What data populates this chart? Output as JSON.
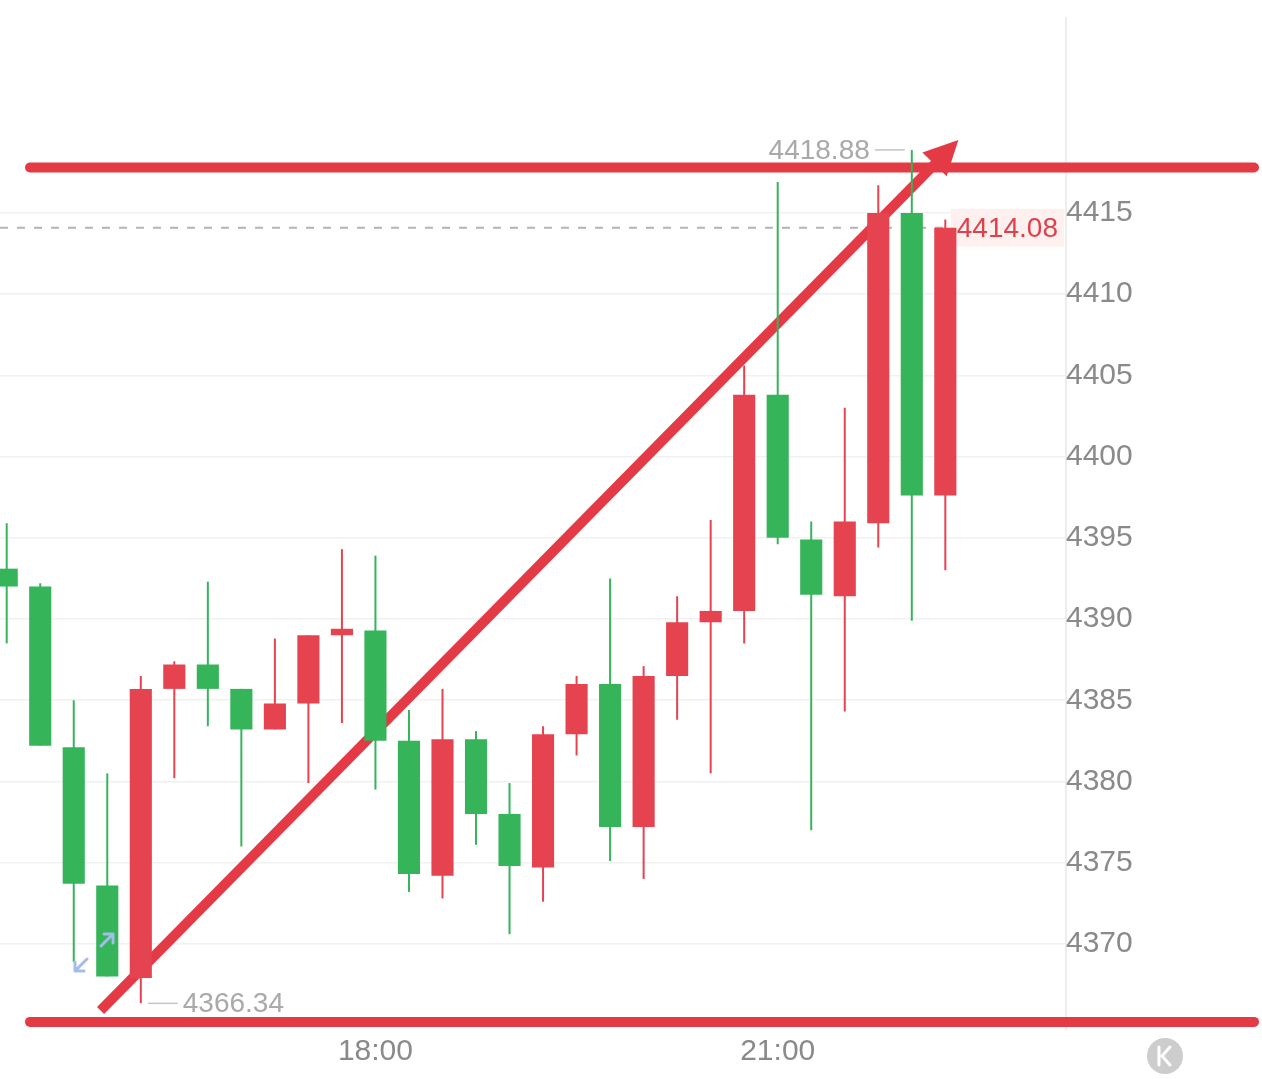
{
  "chart_data": {
    "type": "candlestick",
    "x": [
      15.25,
      15.5,
      15.75,
      16,
      16.25,
      16.5,
      16.75,
      17,
      17.25,
      17.5,
      17.75,
      18,
      18.25,
      18.5,
      18.75,
      19,
      19.25,
      19.5,
      19.75,
      20,
      20.25,
      20.5,
      20.75,
      21,
      21.25,
      21.5,
      21.75,
      22,
      22.25
    ],
    "ohlc": [
      [
        4393.1,
        4395.9,
        4388.5,
        4392.0
      ],
      [
        4392.0,
        4392.2,
        4382.2,
        4382.2
      ],
      [
        4382.1,
        4385.0,
        4368.9,
        4373.7
      ],
      [
        4373.6,
        4380.5,
        4368.0,
        4368.0
      ],
      [
        4367.9,
        4386.5,
        4366.34,
        4385.7
      ],
      [
        4385.7,
        4387.4,
        4380.2,
        4387.2
      ],
      [
        4387.2,
        4392.3,
        4383.4,
        4385.7
      ],
      [
        4385.7,
        4385.7,
        4376.0,
        4383.2
      ],
      [
        4383.2,
        4388.8,
        4383.2,
        4384.8
      ],
      [
        4384.8,
        4389.0,
        4379.9,
        4389.0
      ],
      [
        4389.0,
        4394.3,
        4383.6,
        4389.4
      ],
      [
        4389.3,
        4393.9,
        4379.5,
        4382.5
      ],
      [
        4382.5,
        4384.4,
        4373.2,
        4374.3
      ],
      [
        4374.2,
        4385.7,
        4372.8,
        4382.6
      ],
      [
        4382.6,
        4383.1,
        4376.1,
        4378.0
      ],
      [
        4378.0,
        4379.9,
        4370.6,
        4374.8
      ],
      [
        4374.7,
        4383.4,
        4372.6,
        4382.9
      ],
      [
        4382.9,
        4386.5,
        4381.6,
        4386.0
      ],
      [
        4386.0,
        4392.5,
        4375.1,
        4377.2
      ],
      [
        4377.2,
        4387.1,
        4374.0,
        4386.5
      ],
      [
        4386.5,
        4391.4,
        4383.8,
        4389.8
      ],
      [
        4389.8,
        4396.1,
        4380.5,
        4390.5
      ],
      [
        4390.5,
        4405.6,
        4388.5,
        4403.8
      ],
      [
        4403.8,
        4416.9,
        4394.6,
        4395.0
      ],
      [
        4394.9,
        4396.0,
        4377.0,
        4391.5
      ],
      [
        4391.4,
        4403.0,
        4384.3,
        4396.0
      ],
      [
        4395.9,
        4416.7,
        4394.4,
        4415.0
      ],
      [
        4415.0,
        4418.88,
        4389.9,
        4397.6
      ],
      [
        4397.6,
        4414.6,
        4393.0,
        4414.08
      ]
    ],
    "colors": [
      "#35b45a",
      "#35b45a",
      "#35b45a",
      "#35b45a",
      "#e4434f",
      "#e4434f",
      "#35b45a",
      "#35b45a",
      "#e4434f",
      "#e4434f",
      "#e4434f",
      "#35b45a",
      "#35b45a",
      "#e4434f",
      "#35b45a",
      "#35b45a",
      "#e4434f",
      "#e4434f",
      "#35b45a",
      "#e4434f",
      "#e4434f",
      "#e4434f",
      "#e4434f",
      "#35b45a",
      "#35b45a",
      "#e4434f",
      "#e4434f",
      "#35b45a",
      "#e4434f"
    ],
    "series": [
      {
        "type": "line",
        "x": [
          15.95,
          22.29
        ],
        "values": [
          4365.9,
          4419.0
        ],
        "color": "#e33a45"
      }
    ],
    "xlim": [
      15.2,
      23.15
    ],
    "xticks": [
      {
        "value": 18,
        "label": "18:00"
      },
      {
        "value": 21,
        "label": "21:00"
      }
    ],
    "ylim": [
      4364.7,
      4427
    ],
    "yticks": [
      4370,
      4375,
      4380,
      4385,
      4390,
      4395,
      4400,
      4405,
      4410,
      4415
    ],
    "grid": "y",
    "ref_lines": [
      {
        "axis": "y",
        "value": 4417.8,
        "color": "#e33a45"
      },
      {
        "axis": "y",
        "value": 4365.2,
        "color": "#e33a45"
      },
      {
        "axis": "y",
        "value": 4414.08,
        "label": "4414.08",
        "color": "#b4b4b4",
        "line_style": "dashed"
      }
    ],
    "annotations": [
      {
        "text": "4418.88",
        "x": 22,
        "y": 4418.88
      },
      {
        "text": "4366.34",
        "x": 16.25,
        "y": 4366.34
      }
    ]
  }
}
